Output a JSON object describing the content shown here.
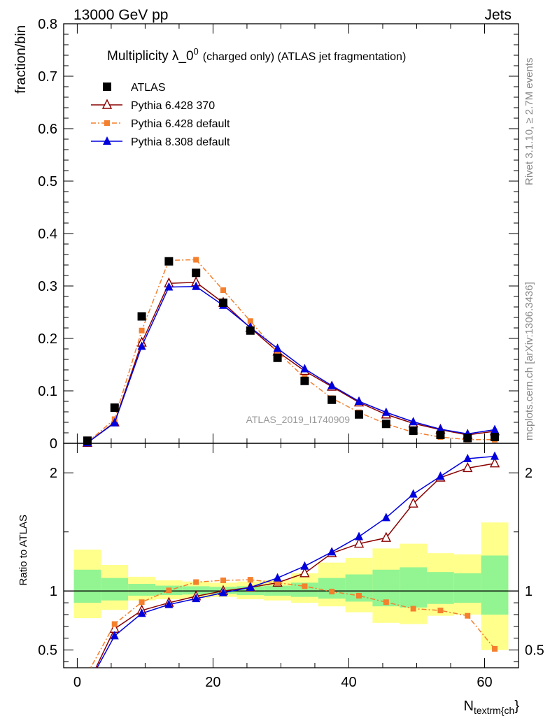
{
  "header": {
    "energy_label": "13000 GeV pp",
    "category_label": "Jets"
  },
  "side_labels": {
    "rivet_version": "Rivet 3.1.10, ≥ 2.7M events",
    "source": "mcplots.cern.ch [arXiv:1306.3436]"
  },
  "chart_data": {
    "type": "line",
    "title": "Multiplicity λ_0",
    "title_superscript": "0",
    "subtitle": "(charged only) (ATLAS jet fragmentation)",
    "analysis_label": "ATLAS_2019_I1740909",
    "xlabel_main": "N",
    "xlabel_sub": "textrm{ch",
    "xlabel_tail": "}",
    "xlim": [
      -2,
      65
    ],
    "x_ticks": [
      0,
      20,
      40,
      60
    ],
    "x_tick_labels": [
      "0",
      "20",
      "40",
      "60"
    ],
    "main_panel": {
      "ylabel": "fraction/bin",
      "ylim": [
        0,
        0.8
      ],
      "y_ticks": [
        0,
        0.1,
        0.2,
        0.3,
        0.4,
        0.5,
        0.6,
        0.7,
        0.8
      ],
      "y_tick_labels": [
        "0",
        "0.1",
        "0.2",
        "0.3",
        "0.4",
        "0.5",
        "0.6",
        "0.7",
        "0.8"
      ],
      "x": [
        1.5,
        5.5,
        9.5,
        13.5,
        17.5,
        21.5,
        25.5,
        29.5,
        33.5,
        37.5,
        41.5,
        45.5,
        49.5,
        53.5,
        57.5,
        61.5
      ],
      "series": [
        {
          "name": "ATLAS",
          "style": "data",
          "color": "#000000",
          "values": [
            0.005,
            0.068,
            0.242,
            0.347,
            0.325,
            0.268,
            0.215,
            0.163,
            0.119,
            0.083,
            0.055,
            0.037,
            0.024,
            0.016,
            0.01,
            0.012
          ]
        },
        {
          "name": "Pythia 6.428 370",
          "style": "open-triangle",
          "color": "#8b0000",
          "values": [
            0.001,
            0.04,
            0.192,
            0.305,
            0.307,
            0.268,
            0.22,
            0.175,
            0.138,
            0.108,
            0.078,
            0.055,
            0.038,
            0.026,
            0.016,
            0.023
          ]
        },
        {
          "name": "Pythia 6.428 default",
          "style": "dashdot-square",
          "color": "#f47f2c",
          "values": [
            0.002,
            0.046,
            0.215,
            0.349,
            0.35,
            0.292,
            0.233,
            0.174,
            0.125,
            0.086,
            0.059,
            0.037,
            0.021,
            0.012,
            0.007,
            0.007
          ]
        },
        {
          "name": "Pythia 8.308 default",
          "style": "filled-triangle",
          "color": "#0000dd",
          "values": [
            0.001,
            0.039,
            0.185,
            0.298,
            0.299,
            0.263,
            0.221,
            0.181,
            0.142,
            0.11,
            0.08,
            0.059,
            0.041,
            0.027,
            0.018,
            0.026
          ]
        }
      ]
    },
    "ratio_panel": {
      "ylabel": "Ratio to ATLAS",
      "ylim": [
        0.35,
        2.25
      ],
      "y_ticks": [
        0.5,
        1,
        2
      ],
      "y_tick_labels": [
        "0.5",
        "1",
        "2"
      ],
      "bins": [
        [
          -0.5,
          3.5
        ],
        [
          3.5,
          7.5
        ],
        [
          7.5,
          11.5
        ],
        [
          11.5,
          15.5
        ],
        [
          15.5,
          19.5
        ],
        [
          19.5,
          23.5
        ],
        [
          23.5,
          27.5
        ],
        [
          27.5,
          31.5
        ],
        [
          31.5,
          35.5
        ],
        [
          35.5,
          39.5
        ],
        [
          39.5,
          43.5
        ],
        [
          43.5,
          47.5
        ],
        [
          47.5,
          51.5
        ],
        [
          51.5,
          55.5
        ],
        [
          55.5,
          59.5
        ],
        [
          59.5,
          63.5
        ]
      ],
      "band_outer": [
        [
          0.77,
          1.35
        ],
        [
          0.84,
          1.22
        ],
        [
          0.92,
          1.12
        ],
        [
          0.93,
          1.09
        ],
        [
          0.94,
          1.08
        ],
        [
          0.95,
          1.07
        ],
        [
          0.93,
          1.08
        ],
        [
          0.92,
          1.09
        ],
        [
          0.9,
          1.15
        ],
        [
          0.87,
          1.24
        ],
        [
          0.82,
          1.28
        ],
        [
          0.73,
          1.36
        ],
        [
          0.72,
          1.4
        ],
        [
          0.79,
          1.32
        ],
        [
          0.8,
          1.31
        ],
        [
          0.5,
          1.58
        ]
      ],
      "band_inner": [
        [
          0.9,
          1.18
        ],
        [
          0.92,
          1.11
        ],
        [
          0.96,
          1.06
        ],
        [
          0.965,
          1.045
        ],
        [
          0.97,
          1.04
        ],
        [
          0.975,
          1.035
        ],
        [
          0.965,
          1.04
        ],
        [
          0.96,
          1.045
        ],
        [
          0.95,
          1.07
        ],
        [
          0.935,
          1.11
        ],
        [
          0.91,
          1.14
        ],
        [
          0.87,
          1.18
        ],
        [
          0.86,
          1.2
        ],
        [
          0.89,
          1.16
        ],
        [
          0.9,
          1.15
        ],
        [
          0.8,
          1.3
        ]
      ],
      "x": [
        1.5,
        5.5,
        9.5,
        13.5,
        17.5,
        21.5,
        25.5,
        29.5,
        33.5,
        37.5,
        41.5,
        45.5,
        49.5,
        53.5,
        57.5,
        61.5
      ],
      "series": [
        {
          "name": "Pythia 6.428 370",
          "values": [
            0.2,
            0.68,
            0.835,
            0.9,
            0.955,
            1.0,
            1.03,
            1.07,
            1.15,
            1.32,
            1.4,
            1.45,
            1.74,
            1.96,
            2.04,
            2.08
          ]
        },
        {
          "name": "Pythia 6.428 default",
          "values": [
            0.3,
            0.72,
            0.905,
            1.005,
            1.075,
            1.09,
            1.095,
            1.07,
            1.04,
            0.995,
            0.96,
            0.905,
            0.85,
            0.835,
            0.79,
            0.51
          ]
        },
        {
          "name": "Pythia 8.308 default",
          "values": [
            0.2,
            0.62,
            0.81,
            0.885,
            0.935,
            0.985,
            1.03,
            1.11,
            1.21,
            1.33,
            1.46,
            1.62,
            1.82,
            1.97,
            2.12,
            2.14
          ]
        }
      ]
    }
  }
}
